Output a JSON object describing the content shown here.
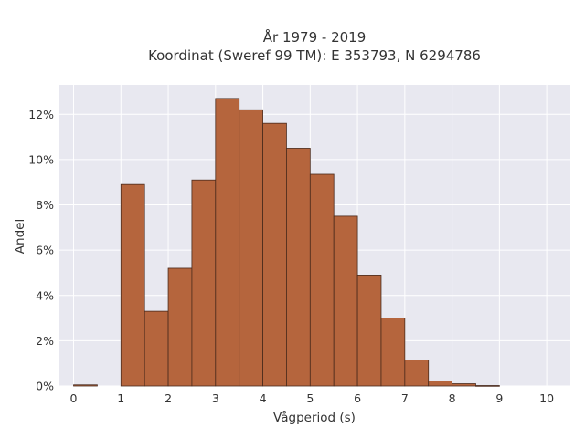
{
  "chart_data": {
    "type": "bar",
    "title": "År 1979 - 2019",
    "subtitle": "Koordinat (Sweref 99 TM): E 353793, N 6294786",
    "xlabel": "Vågperiod (s)",
    "ylabel": "Andel",
    "bin_width": 0.5,
    "bins_start": [
      0,
      0.5,
      1,
      1.5,
      2,
      2.5,
      3,
      3.5,
      4,
      4.5,
      5,
      5.5,
      6,
      6.5,
      7,
      7.5,
      8,
      8.5,
      9,
      9.5
    ],
    "values": [
      0.05,
      0,
      8.9,
      3.3,
      5.2,
      9.1,
      12.7,
      12.2,
      11.6,
      10.5,
      9.35,
      7.5,
      4.9,
      3.0,
      1.15,
      0.22,
      0.1,
      0.02,
      0,
      0
    ],
    "value_unit": "%",
    "xlim": [
      -0.3,
      10.5
    ],
    "ylim": [
      0,
      13.3
    ],
    "x_ticks": [
      0,
      1,
      2,
      3,
      4,
      5,
      6,
      7,
      8,
      9,
      10
    ],
    "x_tick_labels": [
      "0",
      "1",
      "2",
      "3",
      "4",
      "5",
      "6",
      "7",
      "8",
      "9",
      "10"
    ],
    "y_ticks": [
      0,
      2,
      4,
      6,
      8,
      10,
      12
    ],
    "y_tick_labels": [
      "0%",
      "2%",
      "4%",
      "6%",
      "8%",
      "10%",
      "12%"
    ],
    "grid": true,
    "legend": "none",
    "colors": {
      "bar_fill": "#b5653d",
      "bar_stroke": "#4a2a1c",
      "plot_bg": "#e8e8f0",
      "grid": "#ffffff"
    }
  }
}
